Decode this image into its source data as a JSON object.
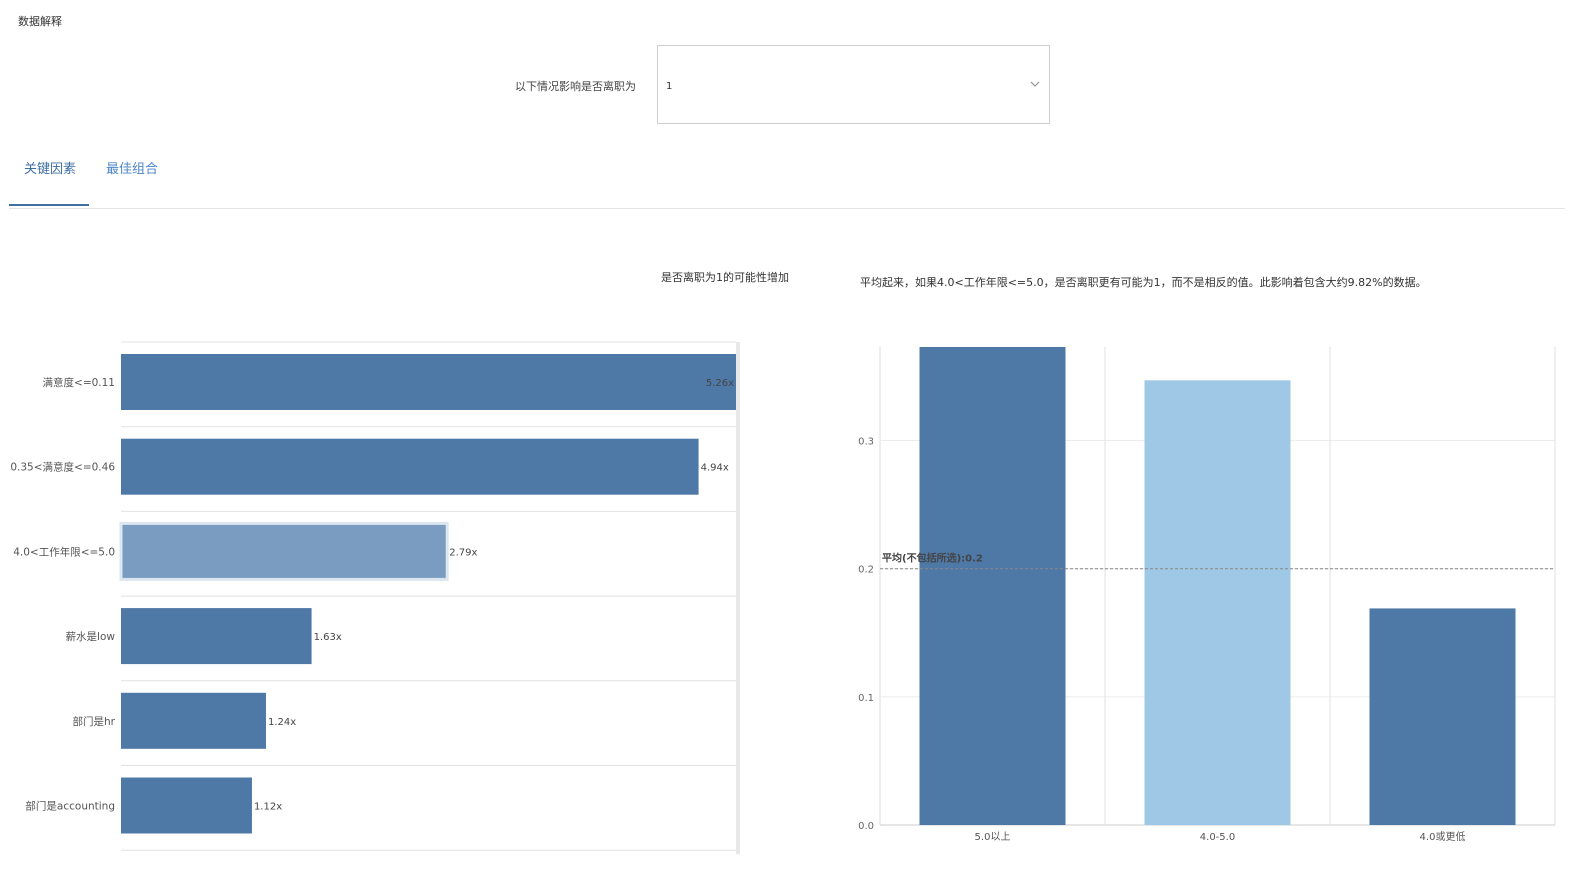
{
  "header": {
    "title": "数据解释"
  },
  "filter": {
    "label": "以下情况影响是否离职为",
    "value": "1",
    "icon": "chevron-down-icon"
  },
  "tabs": [
    {
      "label": "关键因素",
      "active": true
    },
    {
      "label": "最佳组合",
      "active": false
    }
  ],
  "colors": {
    "accent": "#3f6fa3",
    "bar": "#4e78a6",
    "bar_selected": "#7a9cc0",
    "bar_light": "#9fc8e7",
    "tab_text": "#4d86c5"
  },
  "chart_data": [
    {
      "type": "bar",
      "orientation": "horizontal",
      "title": "是否离职为1的可能性增加",
      "categories": [
        "满意度<=0.11",
        "0.35<满意度<=0.46",
        "4.0<工作年限<=5.0",
        "薪水是low",
        "部门是hr",
        "部门是accounting"
      ],
      "values": [
        5.26,
        4.94,
        2.79,
        1.63,
        1.24,
        1.12
      ],
      "data_labels": [
        "5.26x",
        "4.94x",
        "2.79x",
        "1.63x",
        "1.24x",
        "1.12x"
      ],
      "selected_index": 2,
      "grid": true
    },
    {
      "type": "bar",
      "title": "平均起来，如果4.0<工作年限<=5.0，是否离职更有可能为1，而不是相反的值。此影响着包含大约9.82%的数据。",
      "categories": [
        "5.0以上",
        "4.0-5.0",
        "4.0或更低"
      ],
      "values": [
        0.373,
        0.347,
        0.169
      ],
      "highlight_index": 1,
      "ylim": [
        0,
        0.373
      ],
      "yticks": [
        "0.0",
        "0.1",
        "0.2",
        "0.3"
      ],
      "reference_line": {
        "label": "平均(不包括所选):0.2",
        "value": 0.2
      },
      "grid": true
    }
  ]
}
